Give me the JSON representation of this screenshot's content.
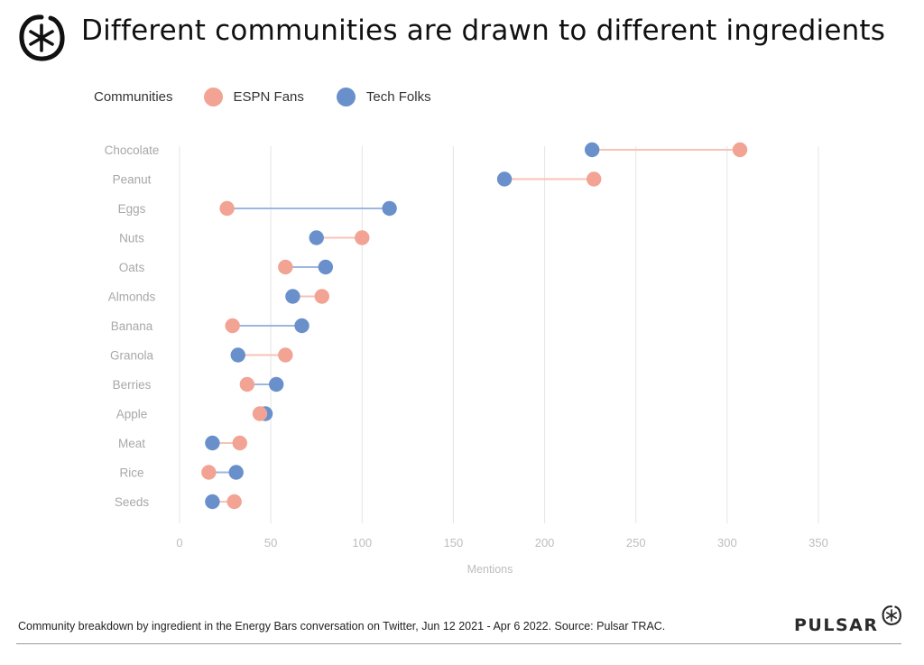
{
  "header": {
    "title": "Different communities are drawn to different ingredients",
    "logo_icon": "pulsar-asterisk-logo-icon"
  },
  "legend": {
    "title": "Communities",
    "items": [
      {
        "label": "ESPN Fans",
        "color": "#f2a393"
      },
      {
        "label": "Tech Folks",
        "color": "#6a90cc"
      }
    ]
  },
  "footer": {
    "note": "Community breakdown by ingredient in the Energy Bars conversation on Twitter, Jun 12 2021 - Apr 6 2022. Source: Pulsar TRAC.",
    "brand": "PULSAR",
    "brand_icon": "pulsar-asterisk-logo-icon"
  },
  "chart_data": {
    "type": "dumbbell",
    "title": "Different communities are drawn to different ingredients",
    "xlabel": "Mentions",
    "ylabel": "",
    "xlim": [
      0,
      350
    ],
    "xticks": [
      0,
      50,
      100,
      150,
      200,
      250,
      300,
      350
    ],
    "grid": true,
    "legend_position": "top-left",
    "categories": [
      "Chocolate",
      "Peanut",
      "Eggs",
      "Nuts",
      "Oats",
      "Almonds",
      "Banana",
      "Granola",
      "Berries",
      "Apple",
      "Meat",
      "Rice",
      "Seeds"
    ],
    "series": [
      {
        "name": "ESPN Fans",
        "color": "#f2a393",
        "values": [
          307,
          227,
          26,
          100,
          58,
          78,
          29,
          58,
          37,
          44,
          33,
          16,
          30
        ]
      },
      {
        "name": "Tech Folks",
        "color": "#6a90cc",
        "values": [
          226,
          178,
          115,
          75,
          80,
          62,
          67,
          32,
          53,
          47,
          18,
          31,
          18
        ]
      }
    ]
  }
}
